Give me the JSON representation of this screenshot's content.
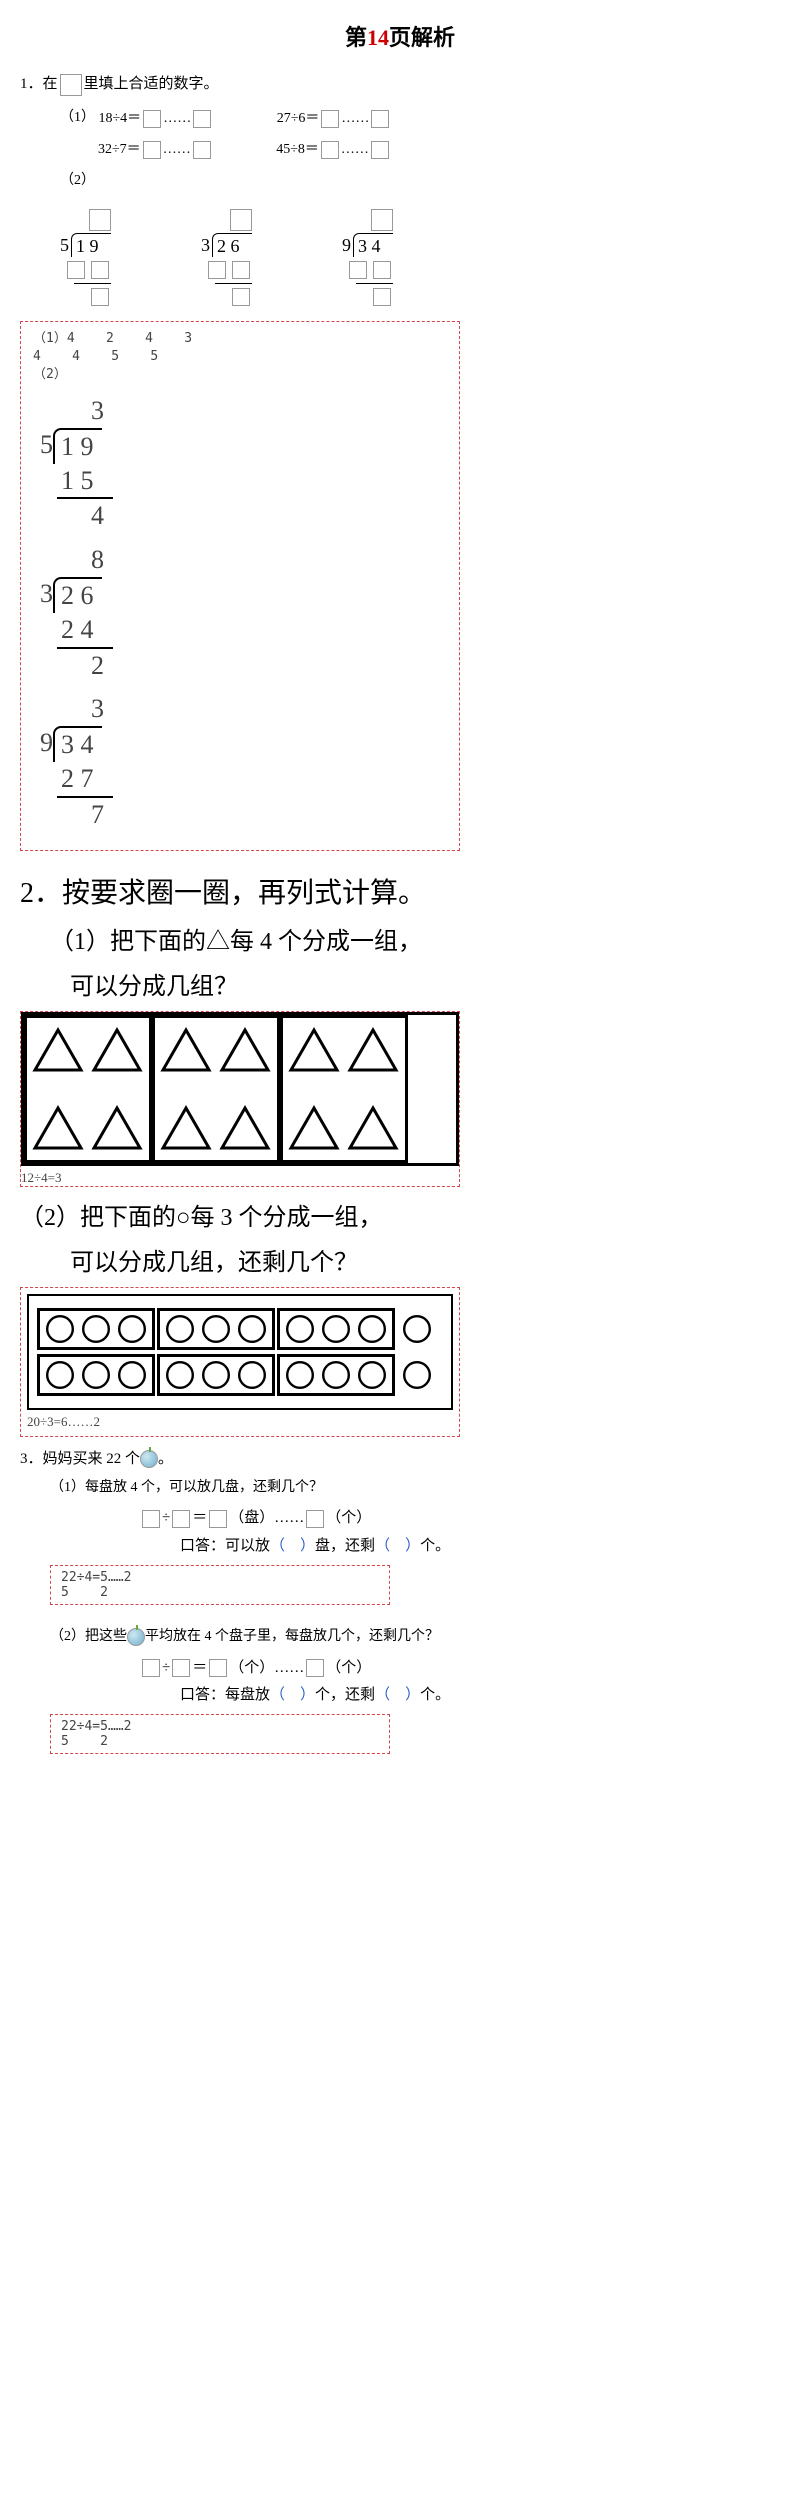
{
  "title_prefix": "第",
  "title_num": "14",
  "title_suffix": "页解析",
  "q1": {
    "stem": "1．在",
    "stem2": "里填上合适的数字。",
    "part1_label": "（1）",
    "eqs": [
      "18÷4＝",
      "27÷6＝",
      "32÷7＝",
      "45÷8＝"
    ],
    "dots": "……",
    "part2_label": "（2）",
    "ld": [
      {
        "divisor": "5",
        "dividend": "1 9"
      },
      {
        "divisor": "3",
        "dividend": "2 6"
      },
      {
        "divisor": "9",
        "dividend": "3 4"
      }
    ],
    "answer_text1": "（1）4    2    4    3\n4    4    5    5\n（2）",
    "worked": [
      {
        "divisor": "5",
        "dividend": "1 9",
        "q": "3",
        "sub": "1 5",
        "rem": "4"
      },
      {
        "divisor": "3",
        "dividend": "2 6",
        "q": "8",
        "sub": "2 4",
        "rem": "2"
      },
      {
        "divisor": "9",
        "dividend": "3 4",
        "q": "3",
        "sub": "2 7",
        "rem": "7"
      }
    ]
  },
  "q2": {
    "stem": "2．按要求圈一圈，再列式计算。",
    "p1a": "（1）把下面的△每 4 个分成一组，",
    "p1b": "可以分成几组？",
    "p1_ans": "12÷4=3",
    "p2a": "（2）把下面的○每 3 个分成一组，",
    "p2b": "可以分成几组，还剩几个？",
    "p2_ans": "20÷3=6……2",
    "tri_color": "#000000",
    "circ_color": "#000000"
  },
  "q3": {
    "stem_a": "3．妈妈买来 22 个",
    "stem_b": "。",
    "p1": "（1）每盘放 4 个，可以放几盘，还剩几个？",
    "fill_units1a": "（盘）",
    "fill_units1b": "（个）",
    "spoken1a": "口答：可以放",
    "spoken1b": "盘，还剩",
    "spoken1c": "个。",
    "ans1": "22÷4=5……2\n5    2",
    "p2a": "（2）把这些",
    "p2b": "平均放在 4 个盘子里，每盘放几个，还剩几个？",
    "fill_units2a": "（个）",
    "fill_units2b": "（个）",
    "spoken2a": "口答：每盘放",
    "spoken2b": "个，还剩",
    "spoken2c": "个。",
    "ans2": "22÷4=5……2\n5    2",
    "div_sign": "÷",
    "eq_sign": "＝",
    "dots": "……",
    "paren_open": "（",
    "paren_close": "）"
  }
}
